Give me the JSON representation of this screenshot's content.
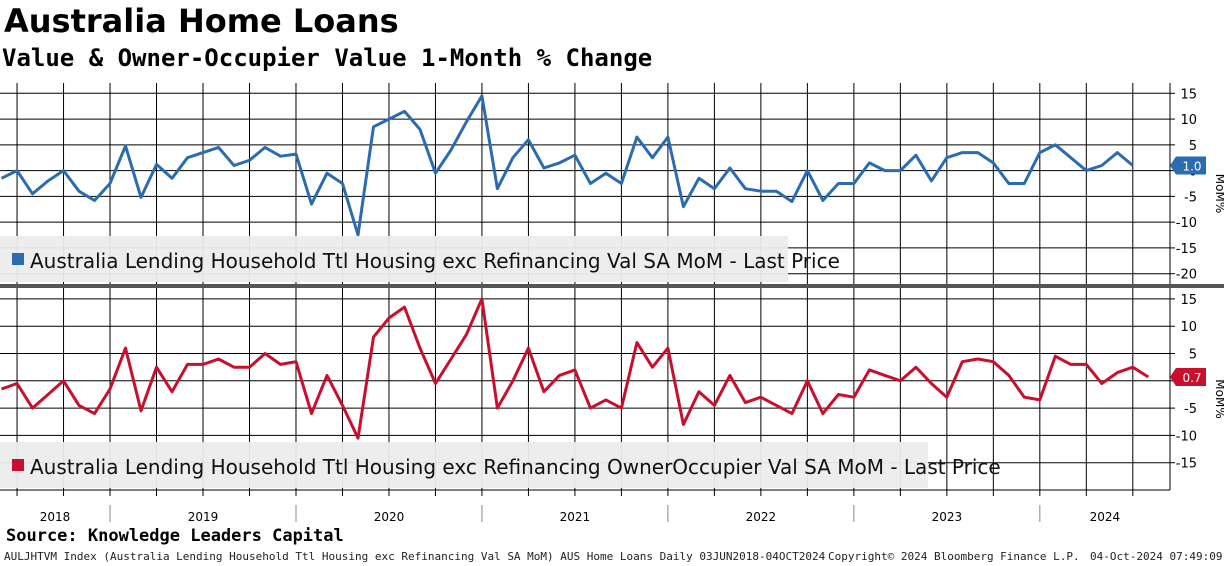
{
  "title": "Australia Home Loans",
  "subtitle": "Value & Owner-Occupier Value 1-Month % Change",
  "source": "Source: Knowledge Leaders Capital",
  "footer": {
    "index_desc": "AULJHTVM Index (Australia Lending Household Ttl Housing exc Refinancing Val SA MoM) AUS Home Loans  Daily 03JUN2018-04OCT2024",
    "copyright": "Copyright© 2024 Bloomberg Finance L.P.",
    "timestamp": "04-Oct-2024 07:49:09"
  },
  "colors": {
    "series1": "#2b6cb0",
    "series2": "#c8102e"
  },
  "chart_data": [
    {
      "type": "line",
      "x_unit": "month",
      "x_start": "2018-06",
      "x_end": "2024-09",
      "x_tick_labels": [
        "2018",
        "2019",
        "2020",
        "2021",
        "2022",
        "2023",
        "2024"
      ],
      "ylim": [
        -22,
        17
      ],
      "y_ticks": [
        15,
        10,
        5,
        0,
        -5,
        -10,
        -15,
        -20
      ],
      "ylabel": "MoM%",
      "grid": true,
      "legend_position": "bottom-left",
      "last_value_label": "1.0",
      "series": [
        {
          "name": "Australia Lending Household Ttl Housing exc Refinancing Val SA MoM - Last Price",
          "color": "#2b6cb0",
          "values": [
            -1.5,
            0,
            -4.5,
            -2,
            0,
            -4,
            -5.8,
            -2.5,
            4.8,
            -5.2,
            1.2,
            -1.5,
            2.5,
            3.5,
            4.5,
            1,
            2,
            4.5,
            2.8,
            3.2,
            -6.5,
            -0.5,
            -2.5,
            -12.5,
            8.5,
            10,
            11.5,
            8,
            -0.5,
            4,
            9.5,
            14.5,
            -3.5,
            2.5,
            6,
            0.5,
            1.5,
            3,
            -2.5,
            -0.5,
            -2.5,
            6.5,
            2.5,
            6.5,
            -7,
            -1.5,
            -3.5,
            0.5,
            -3.5,
            -4,
            -4,
            -6,
            0,
            -5.8,
            -2.5,
            -2.5,
            1.5,
            0,
            0,
            3,
            -2,
            2.5,
            3.5,
            3.5,
            1.5,
            -2.5,
            -2.5,
            3.5,
            5,
            2.5,
            0,
            1,
            3.5,
            1
          ]
        }
      ]
    },
    {
      "type": "line",
      "x_unit": "month",
      "x_start": "2018-06",
      "x_end": "2024-09",
      "x_tick_labels": [
        "2018",
        "2019",
        "2020",
        "2021",
        "2022",
        "2023",
        "2024"
      ],
      "ylim": [
        -20,
        17
      ],
      "y_ticks": [
        15,
        10,
        5,
        0,
        -5,
        -10,
        -15
      ],
      "ylabel": "MoM%",
      "grid": true,
      "legend_position": "bottom-left",
      "last_value_label": "0.7",
      "series": [
        {
          "name": "Australia Lending Household Ttl Housing exc Refinancing OwnerOccupier Val SA MoM - Last Price",
          "color": "#c8102e",
          "values": [
            -1.5,
            -0.5,
            -5,
            -2.5,
            0,
            -4.5,
            -6,
            -1.5,
            6,
            -5.5,
            2.5,
            -2,
            3,
            3,
            4,
            2.5,
            2.5,
            5,
            3,
            3.5,
            -6,
            1,
            -4.5,
            -10.5,
            8,
            11.5,
            13.5,
            6,
            -0.5,
            4,
            8.5,
            15,
            -5,
            0,
            6,
            -2,
            1,
            2,
            -5,
            -3.5,
            -5,
            7,
            2.5,
            6,
            -8,
            -2,
            -4.5,
            1,
            -4,
            -3,
            -4.5,
            -6,
            0,
            -6,
            -2.5,
            -3,
            2,
            1,
            0,
            2.5,
            -0.5,
            -3,
            3.5,
            4,
            3.5,
            1,
            -3,
            -3.5,
            4.5,
            3,
            3,
            -0.5,
            1.5,
            2.5,
            0.7
          ]
        }
      ]
    }
  ]
}
